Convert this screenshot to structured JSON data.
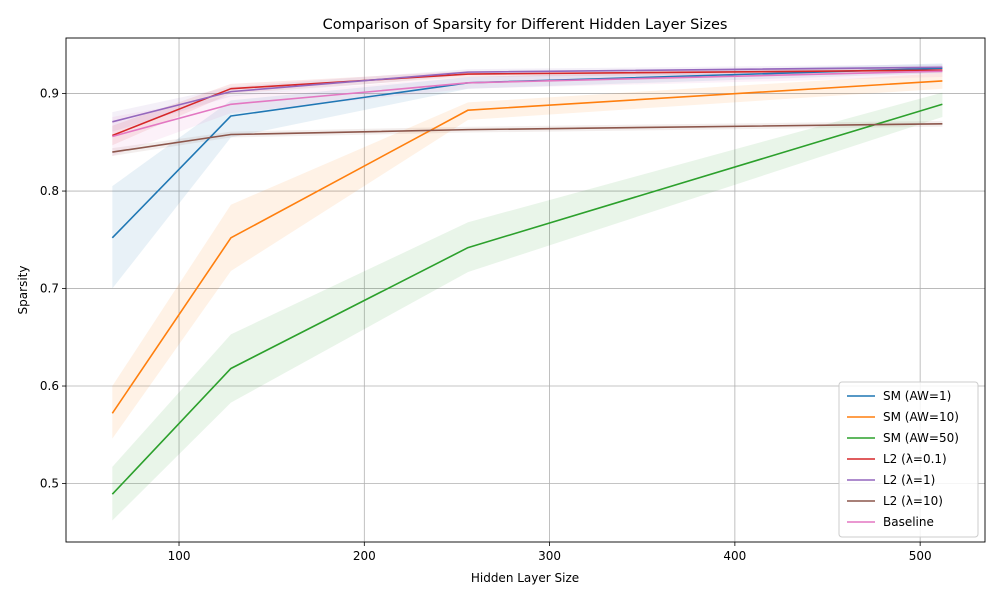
{
  "chart_data": {
    "type": "line",
    "title": "Comparison of Sparsity for Different Hidden Layer Sizes",
    "xlabel": "Hidden Layer Size",
    "ylabel": "Sparsity",
    "xlim": [
      39,
      535
    ],
    "ylim": [
      0.44,
      0.957
    ],
    "xticks": [
      100,
      200,
      300,
      400,
      500
    ],
    "yticks": [
      0.5,
      0.6,
      0.7,
      0.8,
      0.9
    ],
    "grid": true,
    "legend_position": "lower-right",
    "x": [
      64,
      128,
      256,
      512
    ],
    "series": [
      {
        "name": "SM (AW=1)",
        "color": "#1f77b4",
        "values": [
          0.752,
          0.877,
          0.911,
          0.926
        ],
        "lower": [
          0.7,
          0.855,
          0.905,
          0.921
        ],
        "upper": [
          0.805,
          0.893,
          0.917,
          0.931
        ]
      },
      {
        "name": "SM (AW=10)",
        "color": "#ff7f0e",
        "values": [
          0.572,
          0.752,
          0.883,
          0.913
        ],
        "lower": [
          0.546,
          0.718,
          0.873,
          0.905
        ],
        "upper": [
          0.6,
          0.786,
          0.891,
          0.921
        ]
      },
      {
        "name": "SM (AW=50)",
        "color": "#2ca02c",
        "values": [
          0.489,
          0.618,
          0.742,
          0.889
        ],
        "lower": [
          0.462,
          0.583,
          0.717,
          0.876
        ],
        "upper": [
          0.517,
          0.653,
          0.768,
          0.901
        ]
      },
      {
        "name": "L2 (λ=0.1)",
        "color": "#d62728",
        "values": [
          0.857,
          0.905,
          0.92,
          0.924
        ],
        "lower": [
          0.847,
          0.9,
          0.917,
          0.921
        ],
        "upper": [
          0.867,
          0.91,
          0.923,
          0.927
        ]
      },
      {
        "name": "L2 (λ=1)",
        "color": "#9467bd",
        "values": [
          0.871,
          0.902,
          0.922,
          0.927
        ],
        "lower": [
          0.861,
          0.897,
          0.919,
          0.924
        ],
        "upper": [
          0.881,
          0.907,
          0.925,
          0.93
        ]
      },
      {
        "name": "L2 (λ=10)",
        "color": "#8c564b",
        "values": [
          0.84,
          0.858,
          0.863,
          0.869
        ],
        "lower": [
          0.836,
          0.855,
          0.86,
          0.866
        ],
        "upper": [
          0.844,
          0.861,
          0.866,
          0.872
        ]
      },
      {
        "name": "Baseline",
        "color": "#e377c2",
        "values": [
          0.856,
          0.889,
          0.911,
          0.923
        ],
        "lower": [
          0.836,
          0.88,
          0.905,
          0.917
        ],
        "upper": [
          0.876,
          0.898,
          0.917,
          0.929
        ]
      }
    ]
  }
}
